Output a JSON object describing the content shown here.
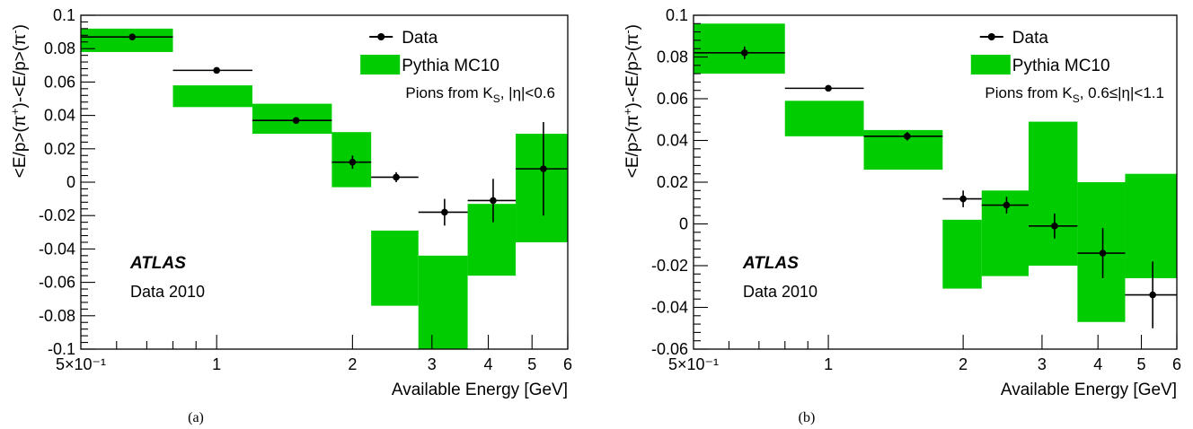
{
  "chart_data": [
    {
      "type": "bar",
      "panel": "(a)",
      "xlabel": "Available Energy [GeV]",
      "ylabel": "<E/p>(π⁺)-<E/p>(π⁻)",
      "xscale": "log",
      "xlim": [
        0.5,
        6
      ],
      "ylim": [
        -0.1,
        0.1
      ],
      "x_ticks": [
        {
          "value": 0.5,
          "label": "5×10⁻¹"
        },
        {
          "value": 1,
          "label": "1"
        },
        {
          "value": 2,
          "label": "2"
        },
        {
          "value": 3,
          "label": "3"
        },
        {
          "value": 4,
          "label": "4"
        },
        {
          "value": 5,
          "label": "5"
        },
        {
          "value": 6,
          "label": "6"
        }
      ],
      "y_ticks": [
        {
          "value": 0.1,
          "label": "0.1"
        },
        {
          "value": 0.08,
          "label": "0.08"
        },
        {
          "value": 0.06,
          "label": "0.06"
        },
        {
          "value": 0.04,
          "label": "0.04"
        },
        {
          "value": 0.02,
          "label": "0.02"
        },
        {
          "value": 0,
          "label": "0"
        },
        {
          "value": -0.02,
          "label": "-0.02"
        },
        {
          "value": -0.04,
          "label": "-0.04"
        },
        {
          "value": -0.06,
          "label": "-0.06"
        },
        {
          "value": -0.08,
          "label": "-0.08"
        },
        {
          "value": -0.1,
          "label": "-0.1"
        }
      ],
      "legend": {
        "data": "Data",
        "mc": "Pythia MC10",
        "placement": "top-right"
      },
      "annotation": "Pions from K_S, |η|<0.6",
      "experiment": "ATLAS",
      "dataset": "Data 2010",
      "mc_bands": [
        {
          "x0": 0.5,
          "x1": 0.8,
          "y0": 0.078,
          "y1": 0.092
        },
        {
          "x0": 0.8,
          "x1": 1.2,
          "y0": 0.045,
          "y1": 0.058
        },
        {
          "x0": 1.2,
          "x1": 1.8,
          "y0": 0.029,
          "y1": 0.047
        },
        {
          "x0": 1.8,
          "x1": 2.2,
          "y0": -0.003,
          "y1": 0.03
        },
        {
          "x0": 2.2,
          "x1": 2.8,
          "y0": -0.074,
          "y1": -0.029
        },
        {
          "x0": 2.8,
          "x1": 3.6,
          "y0": -0.1,
          "y1": -0.044
        },
        {
          "x0": 3.6,
          "x1": 4.6,
          "y0": -0.056,
          "y1": -0.013
        },
        {
          "x0": 4.6,
          "x1": 6.0,
          "y0": -0.036,
          "y1": 0.029
        }
      ],
      "data_points": [
        {
          "x": 0.65,
          "xlo": 0.5,
          "xhi": 0.8,
          "y": 0.087,
          "err": 0.0
        },
        {
          "x": 1.0,
          "xlo": 0.8,
          "xhi": 1.2,
          "y": 0.067,
          "err": 0.0
        },
        {
          "x": 1.5,
          "xlo": 1.2,
          "xhi": 1.8,
          "y": 0.037,
          "err": 0.0
        },
        {
          "x": 2.0,
          "xlo": 1.8,
          "xhi": 2.2,
          "y": 0.012,
          "err": 0.004
        },
        {
          "x": 2.5,
          "xlo": 2.2,
          "xhi": 2.8,
          "y": 0.003,
          "err": 0.003
        },
        {
          "x": 3.2,
          "xlo": 2.8,
          "xhi": 3.6,
          "y": -0.018,
          "err": 0.008
        },
        {
          "x": 4.1,
          "xlo": 3.6,
          "xhi": 4.6,
          "y": -0.011,
          "err": 0.013
        },
        {
          "x": 5.3,
          "xlo": 4.6,
          "xhi": 6.0,
          "y": 0.008,
          "err": 0.028
        }
      ]
    },
    {
      "type": "bar",
      "panel": "(b)",
      "xlabel": "Available Energy [GeV]",
      "ylabel": "<E/p>(π⁺)-<E/p>(π⁻)",
      "xscale": "log",
      "xlim": [
        0.5,
        6
      ],
      "ylim": [
        -0.06,
        0.1
      ],
      "x_ticks": [
        {
          "value": 0.5,
          "label": "5×10⁻¹"
        },
        {
          "value": 1,
          "label": "1"
        },
        {
          "value": 2,
          "label": "2"
        },
        {
          "value": 3,
          "label": "3"
        },
        {
          "value": 4,
          "label": "4"
        },
        {
          "value": 5,
          "label": "5"
        },
        {
          "value": 6,
          "label": "6"
        }
      ],
      "y_ticks": [
        {
          "value": 0.1,
          "label": "0.1"
        },
        {
          "value": 0.08,
          "label": "0.08"
        },
        {
          "value": 0.06,
          "label": "0.06"
        },
        {
          "value": 0.04,
          "label": "0.04"
        },
        {
          "value": 0.02,
          "label": "0.02"
        },
        {
          "value": 0,
          "label": "0"
        },
        {
          "value": -0.02,
          "label": "-0.02"
        },
        {
          "value": -0.04,
          "label": "-0.04"
        },
        {
          "value": -0.06,
          "label": "-0.06"
        }
      ],
      "legend": {
        "data": "Data",
        "mc": "Pythia MC10",
        "placement": "top-right"
      },
      "annotation": "Pions from K_S, 0.6≤|η|<1.1",
      "experiment": "ATLAS",
      "dataset": "Data 2010",
      "mc_bands": [
        {
          "x0": 0.5,
          "x1": 0.8,
          "y0": 0.072,
          "y1": 0.096
        },
        {
          "x0": 0.8,
          "x1": 1.2,
          "y0": 0.042,
          "y1": 0.059
        },
        {
          "x0": 1.2,
          "x1": 1.8,
          "y0": 0.026,
          "y1": 0.045
        },
        {
          "x0": 1.8,
          "x1": 2.2,
          "y0": -0.031,
          "y1": 0.002
        },
        {
          "x0": 2.2,
          "x1": 2.8,
          "y0": -0.025,
          "y1": 0.016
        },
        {
          "x0": 2.8,
          "x1": 3.6,
          "y0": -0.02,
          "y1": 0.049
        },
        {
          "x0": 3.6,
          "x1": 4.6,
          "y0": -0.047,
          "y1": 0.02
        },
        {
          "x0": 4.6,
          "x1": 6.0,
          "y0": -0.026,
          "y1": 0.024
        }
      ],
      "data_points": [
        {
          "x": 0.65,
          "xlo": 0.5,
          "xhi": 0.8,
          "y": 0.082,
          "err": 0.003
        },
        {
          "x": 1.0,
          "xlo": 0.8,
          "xhi": 1.2,
          "y": 0.065,
          "err": 0.0015
        },
        {
          "x": 1.5,
          "xlo": 1.2,
          "xhi": 1.8,
          "y": 0.042,
          "err": 0.002
        },
        {
          "x": 2.0,
          "xlo": 1.8,
          "xhi": 2.2,
          "y": 0.012,
          "err": 0.004
        },
        {
          "x": 2.5,
          "xlo": 2.2,
          "xhi": 2.8,
          "y": 0.009,
          "err": 0.004
        },
        {
          "x": 3.2,
          "xlo": 2.8,
          "xhi": 3.6,
          "y": -0.001,
          "err": 0.006
        },
        {
          "x": 4.1,
          "xlo": 3.6,
          "xhi": 4.6,
          "y": -0.014,
          "err": 0.012
        },
        {
          "x": 5.3,
          "xlo": 4.6,
          "xhi": 6.0,
          "y": -0.034,
          "err": 0.016
        }
      ]
    }
  ],
  "colors": {
    "mc_fill": "#00cc00",
    "data": "#000000",
    "frame": "#000000"
  },
  "captions": [
    "(a)",
    "(b)"
  ]
}
